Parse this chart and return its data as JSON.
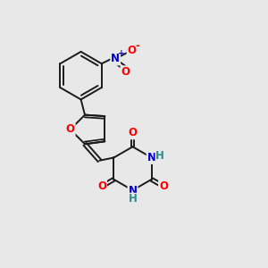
{
  "bg_color": "#e8e8e8",
  "bond_color": "#1a1a1a",
  "bond_width": 1.4,
  "atom_colors": {
    "O": "#ff0000",
    "N": "#0000cc",
    "H": "#2e8b8b",
    "C": "#1a1a1a"
  },
  "font_size_atom": 8.5,
  "font_size_charge": 6.5
}
